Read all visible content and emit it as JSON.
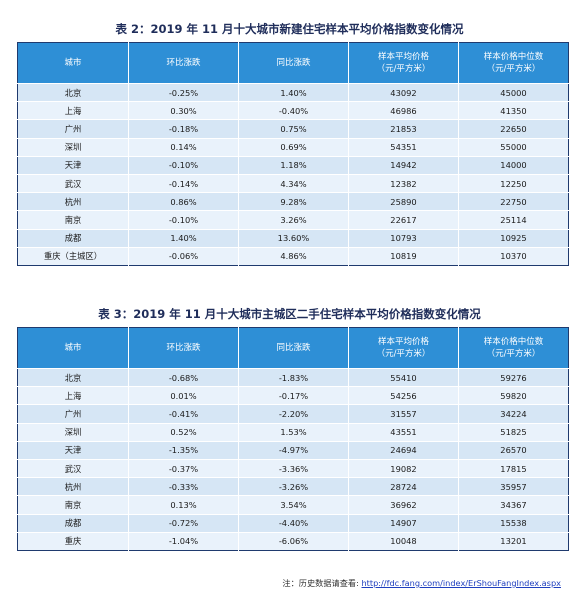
{
  "table2": {
    "title": "表 2：2019 年 11 月十大城市新建住宅样本平均价格指数变化情况",
    "headers": {
      "city": "城市",
      "mom": "环比涨跌",
      "yoy": "同比涨跌",
      "avg_l1": "样本平均价格",
      "avg_l2": "（元/平方米）",
      "med_l1": "样本价格中位数",
      "med_l2": "（元/平方米）"
    },
    "rows": [
      {
        "city": "北京",
        "mom": "-0.25%",
        "yoy": "1.40%",
        "avg": "43092",
        "median": "45000"
      },
      {
        "city": "上海",
        "mom": "0.30%",
        "yoy": "-0.40%",
        "avg": "46986",
        "median": "41350"
      },
      {
        "city": "广州",
        "mom": "-0.18%",
        "yoy": "0.75%",
        "avg": "21853",
        "median": "22650"
      },
      {
        "city": "深圳",
        "mom": "0.14%",
        "yoy": "0.69%",
        "avg": "54351",
        "median": "55000"
      },
      {
        "city": "天津",
        "mom": "-0.10%",
        "yoy": "1.18%",
        "avg": "14942",
        "median": "14000"
      },
      {
        "city": "武汉",
        "mom": "-0.14%",
        "yoy": "4.34%",
        "avg": "12382",
        "median": "12250"
      },
      {
        "city": "杭州",
        "mom": "0.86%",
        "yoy": "9.28%",
        "avg": "25890",
        "median": "22750"
      },
      {
        "city": "南京",
        "mom": "-0.10%",
        "yoy": "3.26%",
        "avg": "22617",
        "median": "25114"
      },
      {
        "city": "成都",
        "mom": "1.40%",
        "yoy": "13.60%",
        "avg": "10793",
        "median": "10925"
      },
      {
        "city": "重庆（主城区）",
        "mom": "-0.06%",
        "yoy": "4.86%",
        "avg": "10819",
        "median": "10370"
      }
    ]
  },
  "table3": {
    "title": "表 3：2019 年 11 月十大城市主城区二手住宅样本平均价格指数变化情况",
    "headers": {
      "city": "城市",
      "mom": "环比涨跌",
      "yoy": "同比涨跌",
      "avg_l1": "样本平均价格",
      "avg_l2": "（元/平方米）",
      "med_l1": "样本价格中位数",
      "med_l2": "（元/平方米）"
    },
    "rows": [
      {
        "city": "北京",
        "mom": "-0.68%",
        "yoy": "-1.83%",
        "avg": "55410",
        "median": "59276"
      },
      {
        "city": "上海",
        "mom": "0.01%",
        "yoy": "-0.17%",
        "avg": "54256",
        "median": "59820"
      },
      {
        "city": "广州",
        "mom": "-0.41%",
        "yoy": "-2.20%",
        "avg": "31557",
        "median": "34224"
      },
      {
        "city": "深圳",
        "mom": "0.52%",
        "yoy": "1.53%",
        "avg": "43551",
        "median": "51825"
      },
      {
        "city": "天津",
        "mom": "-1.35%",
        "yoy": "-4.97%",
        "avg": "24694",
        "median": "26570"
      },
      {
        "city": "武汉",
        "mom": "-0.37%",
        "yoy": "-3.36%",
        "avg": "19082",
        "median": "17815"
      },
      {
        "city": "杭州",
        "mom": "-0.33%",
        "yoy": "-3.26%",
        "avg": "28724",
        "median": "35957"
      },
      {
        "city": "南京",
        "mom": "0.13%",
        "yoy": "3.54%",
        "avg": "36962",
        "median": "34367"
      },
      {
        "city": "成都",
        "mom": "-0.72%",
        "yoy": "-4.40%",
        "avg": "14907",
        "median": "15538"
      },
      {
        "city": "重庆",
        "mom": "-1.04%",
        "yoy": "-6.06%",
        "avg": "10048",
        "median": "13201"
      }
    ]
  },
  "footnote": {
    "prefix": "注：历史数据请查看: ",
    "link_text": "http://fdc.fang.com/index/ErShouFangIndex.aspx"
  },
  "colors": {
    "header_bg": "#2e8fd6",
    "row_bg": "#d6e6f5",
    "row_alt_bg": "#e9f2fb",
    "title_color": "#1f2d5a",
    "link_color": "#1f3fbf"
  }
}
